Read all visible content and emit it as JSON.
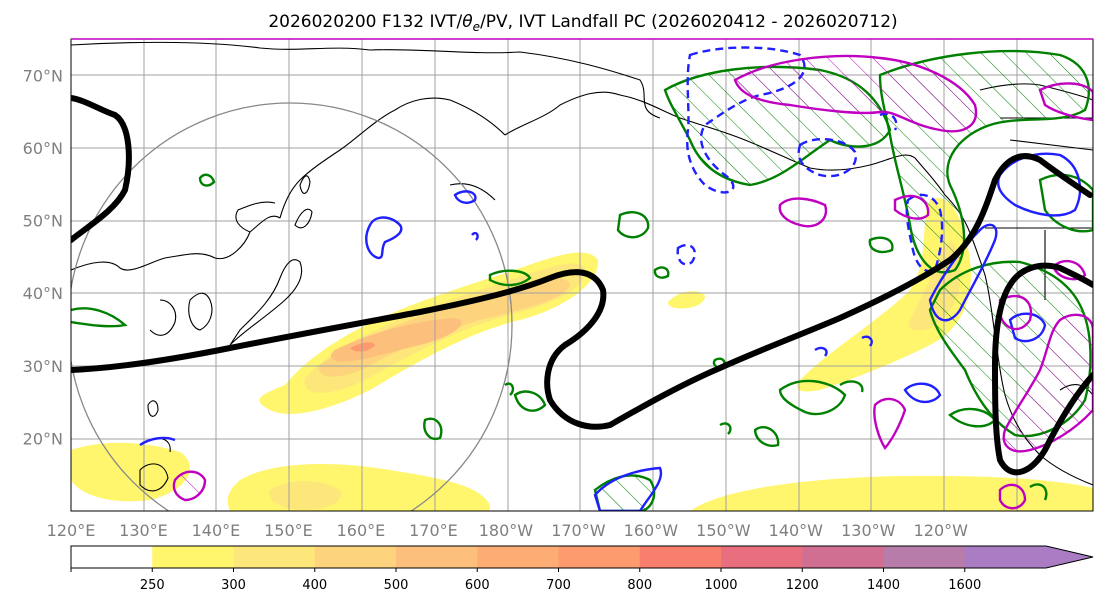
{
  "title_prefix": "2026020200 F132 IVT/",
  "title_theta": "θ",
  "title_sub": "e",
  "title_suffix": "/PV, IVT Landfall PC (2026020412 - 2026020712)",
  "lat_labels": [
    "70°N",
    "60°N",
    "50°N",
    "40°N",
    "30°N",
    "20°N"
  ],
  "lat_values": [
    70,
    60,
    50,
    40,
    30,
    20
  ],
  "lon_labels": [
    "120°E",
    "130°E",
    "140°E",
    "150°E",
    "160°E",
    "170°E",
    "180°W",
    "170°W",
    "160°W",
    "150°W",
    "140°W",
    "130°W",
    "120°W"
  ],
  "lon_values": [
    120,
    130,
    140,
    150,
    160,
    170,
    180,
    190,
    200,
    210,
    220,
    230,
    240
  ],
  "map_extent": {
    "lon_min": 120,
    "lon_max": 261,
    "lat_min": 10,
    "lat_max": 75
  },
  "colorbar": {
    "tick_labels": [
      "250",
      "300",
      "400",
      "500",
      "600",
      "700",
      "800",
      "1000",
      "1200",
      "1400",
      "1600"
    ],
    "levels": [
      250,
      300,
      400,
      500,
      600,
      700,
      800,
      1000,
      1200,
      1400,
      1600
    ],
    "colors": [
      "#ffffff",
      "#fff66e",
      "#fde67a",
      "#fdd37d",
      "#fdc07c",
      "#fdad74",
      "#fd9a6e",
      "#f87f6e",
      "#ea6f7e",
      "#d06f92",
      "#b87caa",
      "#a97cc4"
    ]
  },
  "colors": {
    "pv_contour": "#000000",
    "theta_pos": "#1f1fff",
    "ivt_pc_neg": "#008000",
    "ivt_pc_pos": "#c000c0",
    "grid": "#a0a0a0",
    "circle": "#888888"
  }
}
